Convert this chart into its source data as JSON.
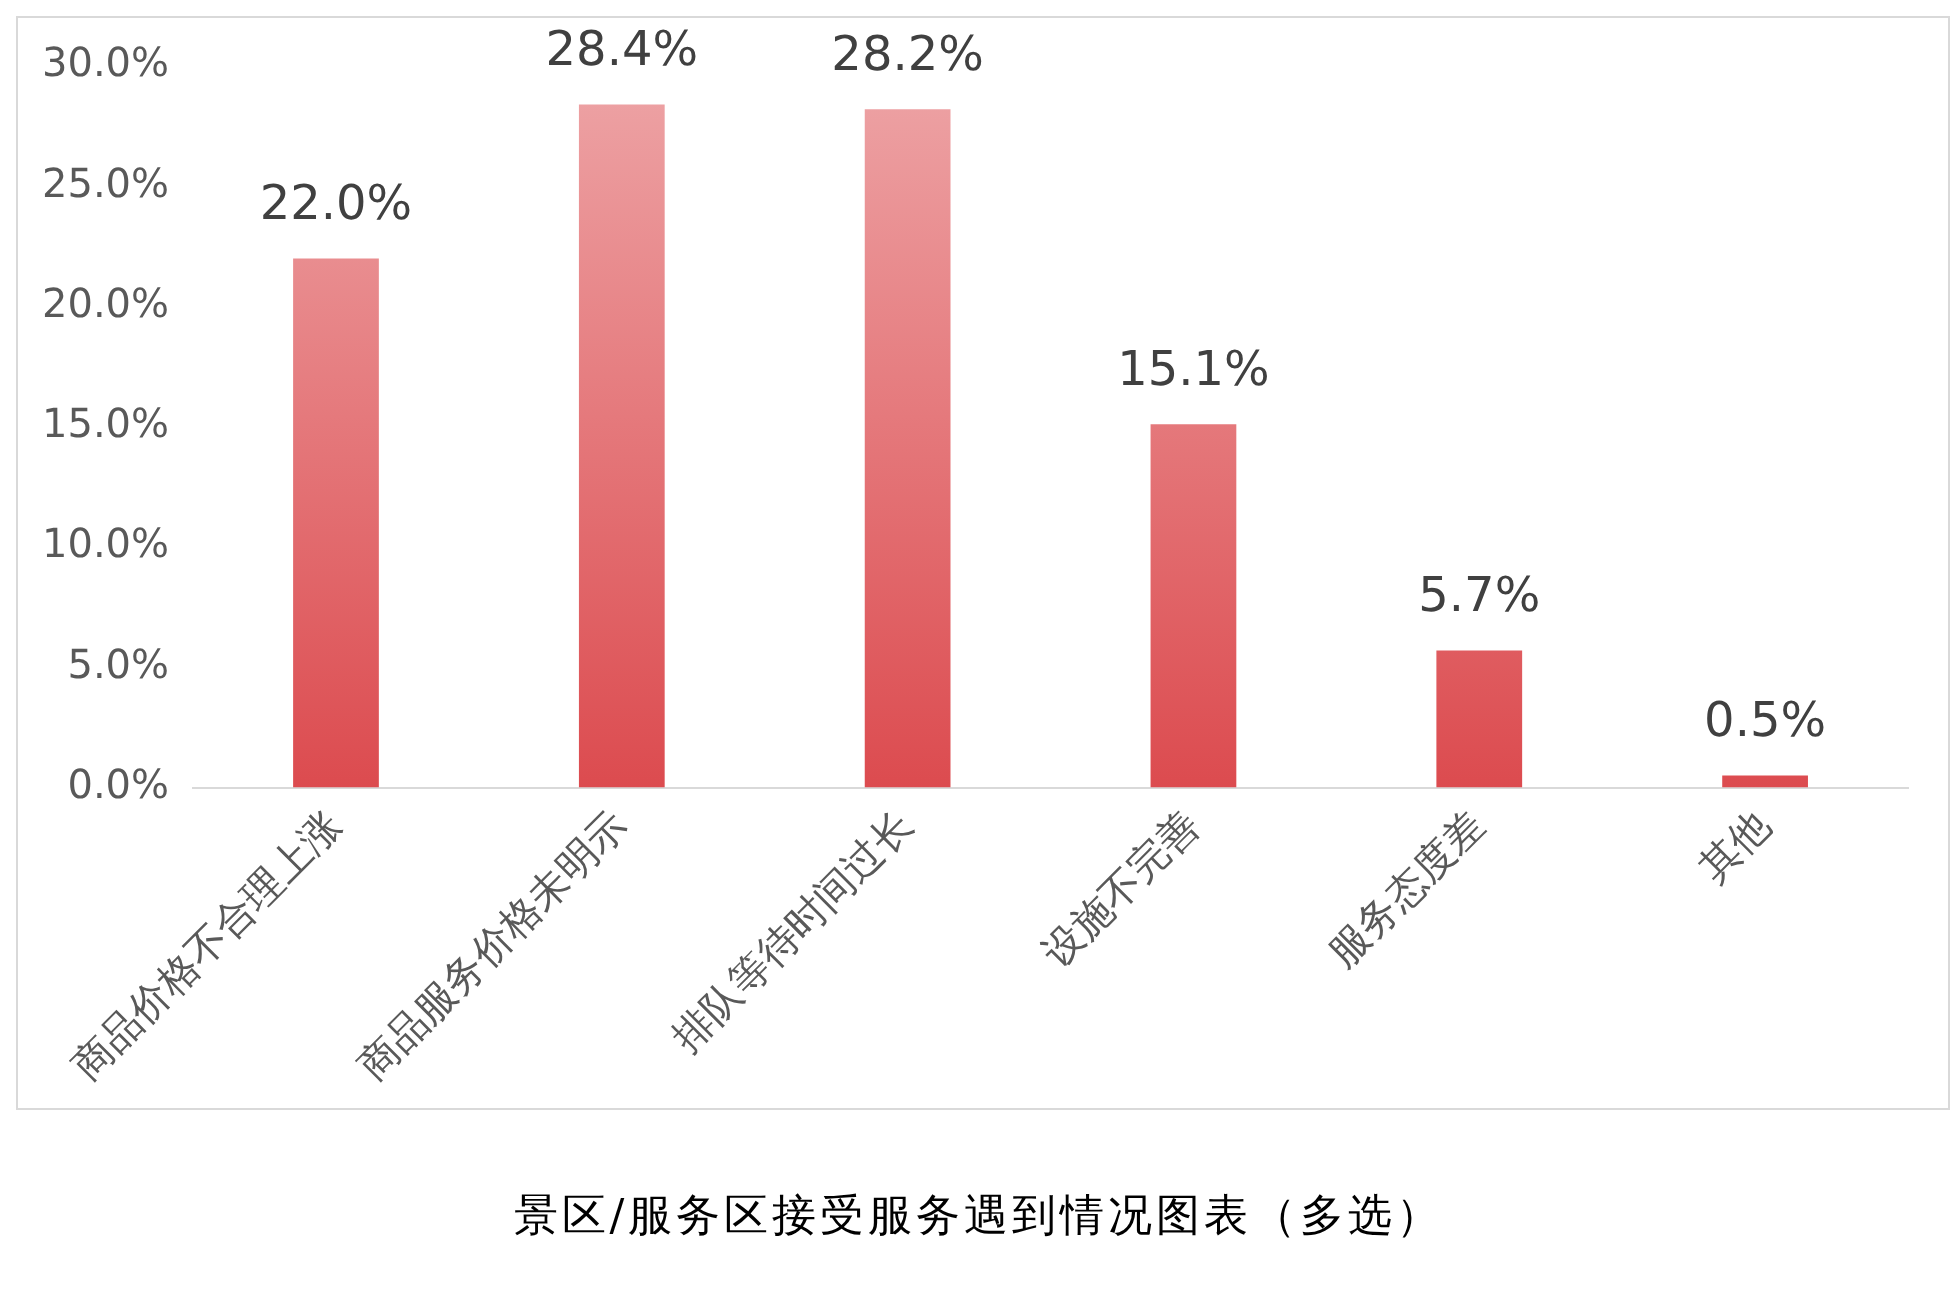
{
  "chart_data": {
    "type": "bar",
    "categories": [
      "商品价格不合理上涨",
      "商品服务价格未明示",
      "排队等待时间过长",
      "设施不完善",
      "服务态度差",
      "其他"
    ],
    "values": [
      22.0,
      28.4,
      28.2,
      15.1,
      5.7,
      0.5
    ],
    "value_labels": [
      "22.0%",
      "28.4%",
      "28.2%",
      "15.1%",
      "5.7%",
      "0.5%"
    ],
    "color": "#dc4b4f",
    "ylim": [
      0,
      30
    ],
    "yticks": [
      {
        "value": 0,
        "label": "0.0%"
      },
      {
        "value": 5,
        "label": "5.0%"
      },
      {
        "value": 10,
        "label": "10.0%"
      },
      {
        "value": 15,
        "label": "15.0%"
      },
      {
        "value": 20,
        "label": "20.0%"
      },
      {
        "value": 25,
        "label": "25.0%"
      },
      {
        "value": 30,
        "label": "30.0%"
      }
    ],
    "grid": false,
    "legend": false,
    "annotations": [
      "景区/服务区接受服务遇到情况图表（多选）"
    ]
  }
}
